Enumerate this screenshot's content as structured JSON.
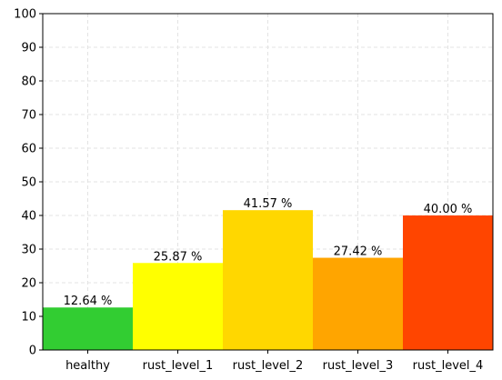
{
  "chart_data": {
    "type": "bar",
    "categories": [
      "healthy",
      "rust_level_1",
      "rust_level_2",
      "rust_level_3",
      "rust_level_4"
    ],
    "values": [
      12.64,
      25.87,
      41.57,
      27.42,
      40.0
    ],
    "data_labels": [
      "12.64 %",
      "25.87 %",
      "41.57 %",
      "27.42 %",
      "40.00 %"
    ],
    "colors": [
      "#32cd32",
      "#ffff00",
      "#ffd700",
      "#ffa500",
      "#ff4500"
    ],
    "ylim": [
      0,
      100
    ],
    "yticks": [
      0,
      10,
      20,
      30,
      40,
      50,
      60,
      70,
      80,
      90,
      100
    ],
    "grid": true,
    "title": "",
    "xlabel": "",
    "ylabel": ""
  }
}
